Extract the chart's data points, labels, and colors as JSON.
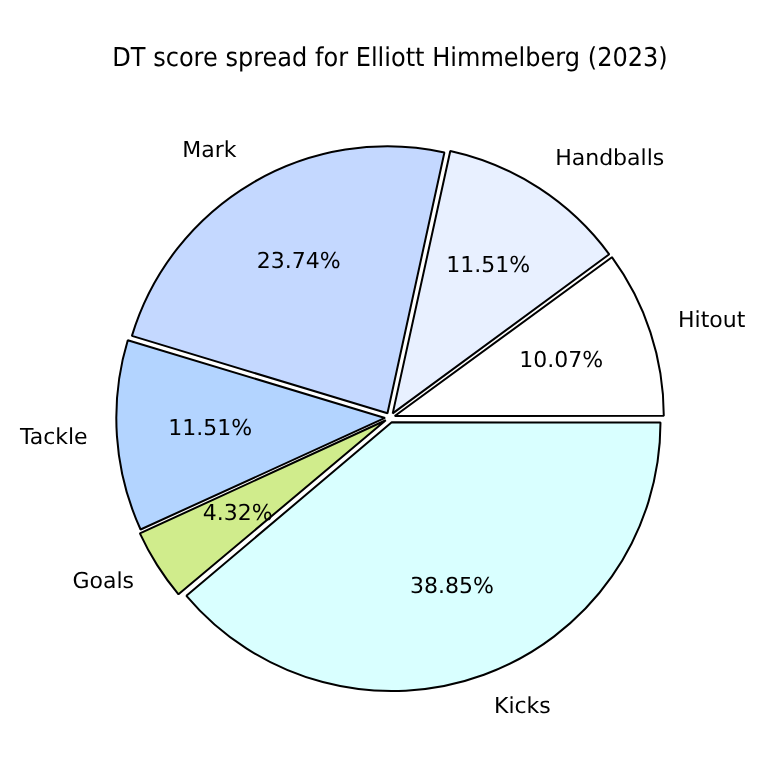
{
  "chart_data": {
    "type": "pie",
    "title": "DT score spread for Elliott Himmelberg (2023)",
    "categories": [
      "Hitout",
      "Handballs",
      "Mark",
      "Tackle",
      "Goals",
      "Kicks"
    ],
    "values": [
      10.07,
      11.51,
      23.74,
      11.51,
      4.32,
      38.85
    ],
    "colors": [
      "#ffffff",
      "#e8f0ff",
      "#c4d8ff",
      "#b3d4ff",
      "#d0ec8c",
      "#d9ffff"
    ],
    "value_labels": [
      "10.07%",
      "11.51%",
      "23.74%",
      "11.51%",
      "4.32%",
      "38.85%"
    ],
    "legend": false
  }
}
